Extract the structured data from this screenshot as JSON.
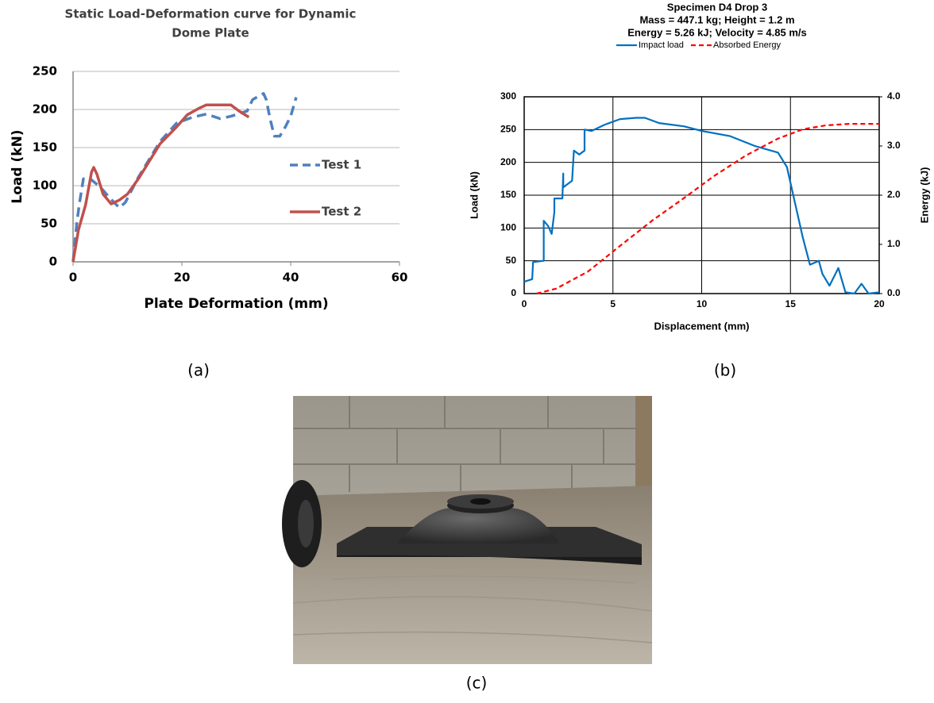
{
  "chart_data": [
    {
      "type": "line",
      "title": [
        "Static Load-Deformation curve for Dynamic",
        "Dome Plate"
      ],
      "x_label": "Plate Deformation (mm)",
      "y_label": "Load (kN)",
      "xlim": [
        0,
        60
      ],
      "xticks": [
        0,
        20,
        40,
        60
      ],
      "ylim": [
        0,
        250
      ],
      "yticks": [
        0,
        50,
        100,
        150,
        200,
        250
      ],
      "grid": "y",
      "legend": "right",
      "series": [
        {
          "name": "Test 1",
          "color": "#4f81bd",
          "style": "dashed",
          "x": [
            0,
            0.7,
            1.2,
            1.9,
            3,
            5,
            7,
            8.5,
            9.6,
            12,
            16,
            19,
            22,
            24.5,
            27,
            29,
            32,
            33,
            35,
            35.5,
            36.2,
            37,
            38,
            39,
            40,
            41
          ],
          "values": [
            0,
            52,
            78,
            109,
            110,
            98,
            82,
            71,
            78,
            111,
            158,
            182,
            190,
            194,
            188,
            191,
            198,
            213,
            221,
            213,
            188,
            165,
            165,
            177,
            191,
            216
          ]
        },
        {
          "name": "Test 2",
          "color": "#c0504d",
          "style": "solid",
          "x": [
            0,
            1,
            2.3,
            3.4,
            3.8,
            4.4,
            5.5,
            7,
            8.5,
            10,
            12,
            16,
            19,
            21,
            23,
            24.5,
            27,
            29,
            30.5,
            32.3
          ],
          "values": [
            0,
            42,
            75,
            118,
            124,
            115,
            89,
            76,
            81,
            89,
            109,
            155,
            177,
            193,
            201,
            206,
            206,
            206,
            198,
            190
          ]
        }
      ]
    },
    {
      "type": "line",
      "title": "Specimen D4 Drop 3",
      "subtitle": [
        "Mass = 447.1 kg; Height = 1.2 m",
        "Energy =  5.26 kJ; Velocity =  4.85 m/s"
      ],
      "x_label": "Displacement (mm)",
      "y_label": "Load (kN)",
      "y2_label": "Energy (kJ)",
      "xlim": [
        0,
        20
      ],
      "xticks": [
        0,
        5,
        10,
        15,
        20
      ],
      "ylim": [
        0,
        300
      ],
      "yticks": [
        0,
        50,
        100,
        150,
        200,
        250,
        300
      ],
      "y2lim": [
        0,
        4
      ],
      "y2ticks": [
        {
          "value": 0,
          "label": "0.0"
        },
        {
          "value": 1,
          "label": "1.0"
        },
        {
          "value": 2,
          "label": "2.0"
        },
        {
          "value": 3,
          "label": "3.0"
        },
        {
          "value": 4,
          "label": "4.0"
        }
      ],
      "grid": "both",
      "legend": "top",
      "series": [
        {
          "name": "Impact load",
          "color": "#0070c0",
          "style": "solid",
          "x": [
            0,
            0.45,
            0.5,
            1.1,
            1.1,
            1.35,
            1.55,
            1.7,
            1.7,
            2.15,
            2.2,
            2.2,
            2.7,
            2.8,
            3.1,
            3.4,
            3.4,
            3.8,
            4.5,
            5.4,
            6.3,
            6.8,
            7.6,
            9,
            10,
            11.6,
            13,
            14.3,
            14.8,
            15.2,
            15.7,
            16.1,
            16.6,
            16.8,
            17.2,
            17.7,
            18.1,
            18.6,
            19,
            19.4,
            20
          ],
          "values": [
            18,
            22,
            48,
            50,
            111,
            103,
            91,
            124,
            145,
            145,
            183,
            162,
            172,
            218,
            212,
            218,
            250,
            248,
            257,
            266,
            268,
            268,
            260,
            255,
            248,
            240,
            225,
            215,
            193,
            145,
            85,
            44,
            50,
            30,
            12,
            39,
            2,
            0,
            15,
            0,
            2
          ]
        },
        {
          "name": "Absorbed Energy",
          "color": "#ff0000",
          "style": "dashed",
          "axis": "y2",
          "x": [
            0.7,
            1.8,
            3.6,
            5.4,
            7.2,
            9,
            10.7,
            12.5,
            14.3,
            15.7,
            17,
            18.3,
            20
          ],
          "values": [
            0,
            0.1,
            0.45,
            0.97,
            1.48,
            1.94,
            2.39,
            2.81,
            3.15,
            3.34,
            3.42,
            3.45,
            3.45
          ]
        }
      ]
    }
  ],
  "panel_labels": [
    "(a)",
    "(b)",
    "(c)"
  ]
}
